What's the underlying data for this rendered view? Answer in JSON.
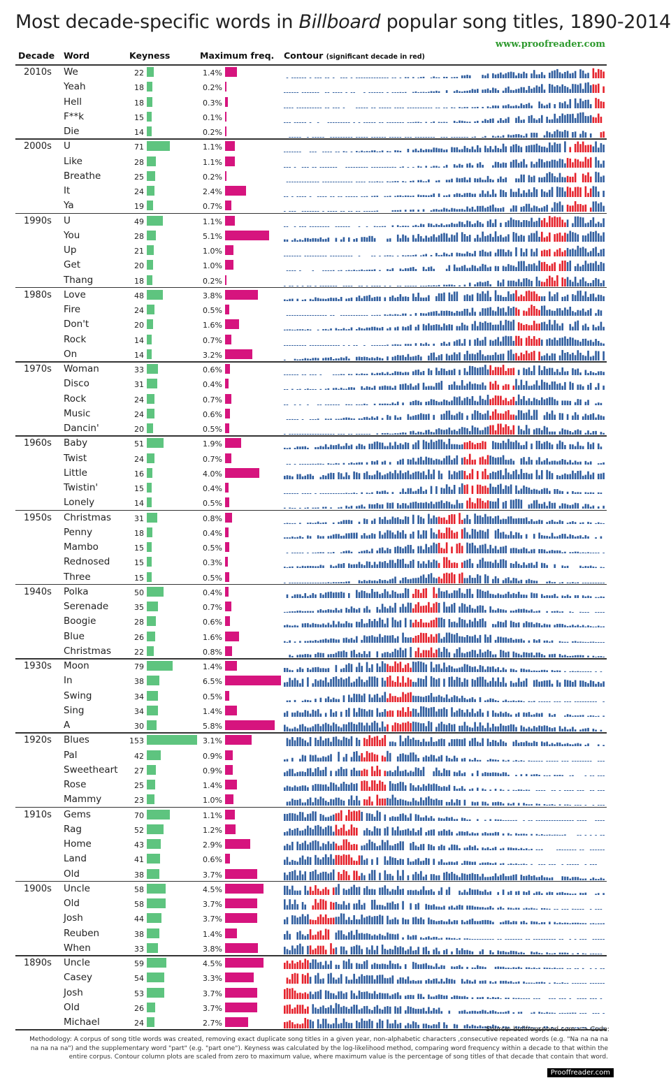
{
  "title": {
    "before": "Most decade-specific words in ",
    "italic": "Billboard",
    "after": " popular song titles, 1890-2014"
  },
  "site": "www.proofreader.com",
  "headers": {
    "decade": "Decade",
    "word": "Word",
    "keyness": "Keyness",
    "maxfreq": "Maximum freq.",
    "contour": "Contour",
    "contour_note": "(significant decade in red)"
  },
  "colors": {
    "keyness": "#5ec47f",
    "maxfreq": "#d6147e",
    "contour": "#2f5d9e",
    "significant": "#e5202a"
  },
  "footer": {
    "source": "Source: bullfrogspond.com <> Code:",
    "methodology": "Methodology: A corpus of song title words was created, removing exact duplicate song titles in a given year, non-alphabetic characters ,consecutive repeated words (e.g. \"Na na na na na na na na\") and the supplementary word \"part\" (e.g. \"part one\"). Keyness was calculated by the log-likelihood method, comparing word frequency within a decade to that within the entire corpus. Contour column plots are scaled from zero to maximum value, where maximum value is the percentage of song titles of that decade that contain that word.",
    "brand": "Prooffreader.com"
  },
  "chart_data": {
    "type": "table",
    "title": "Most decade-specific words in Billboard popular song titles, 1890-2014",
    "columns": [
      "Decade",
      "Word",
      "Keyness",
      "Maximum freq.",
      "Contour"
    ],
    "contour_year_range": [
      1890,
      2014
    ],
    "rows": [
      {
        "decade": "2010s",
        "words": [
          {
            "word": "We",
            "keyness": 22,
            "freq": "1.4%",
            "freq_value": 1.4
          },
          {
            "word": "Yeah",
            "keyness": 18,
            "freq": "0.2%",
            "freq_value": 0.2
          },
          {
            "word": "Hell",
            "keyness": 18,
            "freq": "0.3%",
            "freq_value": 0.3
          },
          {
            "word": "F**k",
            "keyness": 15,
            "freq": "0.1%",
            "freq_value": 0.1
          },
          {
            "word": "Die",
            "keyness": 14,
            "freq": "0.2%",
            "freq_value": 0.2
          }
        ]
      },
      {
        "decade": "2000s",
        "words": [
          {
            "word": "U",
            "keyness": 71,
            "freq": "1.1%",
            "freq_value": 1.1
          },
          {
            "word": "Like",
            "keyness": 28,
            "freq": "1.1%",
            "freq_value": 1.1
          },
          {
            "word": "Breathe",
            "keyness": 25,
            "freq": "0.2%",
            "freq_value": 0.2
          },
          {
            "word": "It",
            "keyness": 24,
            "freq": "2.4%",
            "freq_value": 2.4
          },
          {
            "word": "Ya",
            "keyness": 19,
            "freq": "0.7%",
            "freq_value": 0.7
          }
        ]
      },
      {
        "decade": "1990s",
        "words": [
          {
            "word": "U",
            "keyness": 49,
            "freq": "1.1%",
            "freq_value": 1.1
          },
          {
            "word": "You",
            "keyness": 28,
            "freq": "5.1%",
            "freq_value": 5.1
          },
          {
            "word": "Up",
            "keyness": 21,
            "freq": "1.0%",
            "freq_value": 1.0
          },
          {
            "word": "Get",
            "keyness": 20,
            "freq": "1.0%",
            "freq_value": 1.0
          },
          {
            "word": "Thang",
            "keyness": 18,
            "freq": "0.2%",
            "freq_value": 0.2
          }
        ]
      },
      {
        "decade": "1980s",
        "words": [
          {
            "word": "Love",
            "keyness": 48,
            "freq": "3.8%",
            "freq_value": 3.8
          },
          {
            "word": "Fire",
            "keyness": 24,
            "freq": "0.5%",
            "freq_value": 0.5
          },
          {
            "word": "Don't",
            "keyness": 20,
            "freq": "1.6%",
            "freq_value": 1.6
          },
          {
            "word": "Rock",
            "keyness": 14,
            "freq": "0.7%",
            "freq_value": 0.7
          },
          {
            "word": "On",
            "keyness": 14,
            "freq": "3.2%",
            "freq_value": 3.2
          }
        ]
      },
      {
        "decade": "1970s",
        "words": [
          {
            "word": "Woman",
            "keyness": 33,
            "freq": "0.6%",
            "freq_value": 0.6
          },
          {
            "word": "Disco",
            "keyness": 31,
            "freq": "0.4%",
            "freq_value": 0.4
          },
          {
            "word": "Rock",
            "keyness": 24,
            "freq": "0.7%",
            "freq_value": 0.7
          },
          {
            "word": "Music",
            "keyness": 24,
            "freq": "0.6%",
            "freq_value": 0.6
          },
          {
            "word": "Dancin'",
            "keyness": 20,
            "freq": "0.5%",
            "freq_value": 0.5
          }
        ]
      },
      {
        "decade": "1960s",
        "words": [
          {
            "word": "Baby",
            "keyness": 51,
            "freq": "1.9%",
            "freq_value": 1.9
          },
          {
            "word": "Twist",
            "keyness": 24,
            "freq": "0.7%",
            "freq_value": 0.7
          },
          {
            "word": "Little",
            "keyness": 16,
            "freq": "4.0%",
            "freq_value": 4.0
          },
          {
            "word": "Twistin'",
            "keyness": 15,
            "freq": "0.4%",
            "freq_value": 0.4
          },
          {
            "word": "Lonely",
            "keyness": 14,
            "freq": "0.5%",
            "freq_value": 0.5
          }
        ]
      },
      {
        "decade": "1950s",
        "words": [
          {
            "word": "Christmas",
            "keyness": 31,
            "freq": "0.8%",
            "freq_value": 0.8
          },
          {
            "word": "Penny",
            "keyness": 18,
            "freq": "0.4%",
            "freq_value": 0.4
          },
          {
            "word": "Mambo",
            "keyness": 15,
            "freq": "0.5%",
            "freq_value": 0.5
          },
          {
            "word": "Rednosed",
            "keyness": 15,
            "freq": "0.3%",
            "freq_value": 0.3
          },
          {
            "word": "Three",
            "keyness": 15,
            "freq": "0.5%",
            "freq_value": 0.5
          }
        ]
      },
      {
        "decade": "1940s",
        "words": [
          {
            "word": "Polka",
            "keyness": 50,
            "freq": "0.4%",
            "freq_value": 0.4
          },
          {
            "word": "Serenade",
            "keyness": 35,
            "freq": "0.7%",
            "freq_value": 0.7
          },
          {
            "word": "Boogie",
            "keyness": 28,
            "freq": "0.6%",
            "freq_value": 0.6
          },
          {
            "word": "Blue",
            "keyness": 26,
            "freq": "1.6%",
            "freq_value": 1.6
          },
          {
            "word": "Christmas",
            "keyness": 22,
            "freq": "0.8%",
            "freq_value": 0.8
          }
        ]
      },
      {
        "decade": "1930s",
        "words": [
          {
            "word": "Moon",
            "keyness": 79,
            "freq": "1.4%",
            "freq_value": 1.4
          },
          {
            "word": "In",
            "keyness": 38,
            "freq": "6.5%",
            "freq_value": 6.5
          },
          {
            "word": "Swing",
            "keyness": 34,
            "freq": "0.5%",
            "freq_value": 0.5
          },
          {
            "word": "Sing",
            "keyness": 34,
            "freq": "1.4%",
            "freq_value": 1.4
          },
          {
            "word": "A",
            "keyness": 30,
            "freq": "5.8%",
            "freq_value": 5.8
          }
        ]
      },
      {
        "decade": "1920s",
        "words": [
          {
            "word": "Blues",
            "keyness": 153,
            "freq": "3.1%",
            "freq_value": 3.1
          },
          {
            "word": "Pal",
            "keyness": 42,
            "freq": "0.9%",
            "freq_value": 0.9
          },
          {
            "word": "Sweetheart",
            "keyness": 27,
            "freq": "0.9%",
            "freq_value": 0.9
          },
          {
            "word": "Rose",
            "keyness": 25,
            "freq": "1.4%",
            "freq_value": 1.4
          },
          {
            "word": "Mammy",
            "keyness": 23,
            "freq": "1.0%",
            "freq_value": 1.0
          }
        ]
      },
      {
        "decade": "1910s",
        "words": [
          {
            "word": "Gems",
            "keyness": 70,
            "freq": "1.1%",
            "freq_value": 1.1
          },
          {
            "word": "Rag",
            "keyness": 52,
            "freq": "1.2%",
            "freq_value": 1.2
          },
          {
            "word": "Home",
            "keyness": 43,
            "freq": "2.9%",
            "freq_value": 2.9
          },
          {
            "word": "Land",
            "keyness": 41,
            "freq": "0.6%",
            "freq_value": 0.6
          },
          {
            "word": "Old",
            "keyness": 38,
            "freq": "3.7%",
            "freq_value": 3.7
          }
        ]
      },
      {
        "decade": "1900s",
        "words": [
          {
            "word": "Uncle",
            "keyness": 58,
            "freq": "4.5%",
            "freq_value": 4.5
          },
          {
            "word": "Old",
            "keyness": 58,
            "freq": "3.7%",
            "freq_value": 3.7
          },
          {
            "word": "Josh",
            "keyness": 44,
            "freq": "3.7%",
            "freq_value": 3.7
          },
          {
            "word": "Reuben",
            "keyness": 38,
            "freq": "1.4%",
            "freq_value": 1.4
          },
          {
            "word": "When",
            "keyness": 33,
            "freq": "3.8%",
            "freq_value": 3.8
          }
        ]
      },
      {
        "decade": "1890s",
        "words": [
          {
            "word": "Uncle",
            "keyness": 59,
            "freq": "4.5%",
            "freq_value": 4.5
          },
          {
            "word": "Casey",
            "keyness": 54,
            "freq": "3.3%",
            "freq_value": 3.3
          },
          {
            "word": "Josh",
            "keyness": 53,
            "freq": "3.7%",
            "freq_value": 3.7
          },
          {
            "word": "Old",
            "keyness": 26,
            "freq": "3.7%",
            "freq_value": 3.7
          },
          {
            "word": "Michael",
            "keyness": 24,
            "freq": "2.7%",
            "freq_value": 2.7
          }
        ]
      }
    ]
  }
}
